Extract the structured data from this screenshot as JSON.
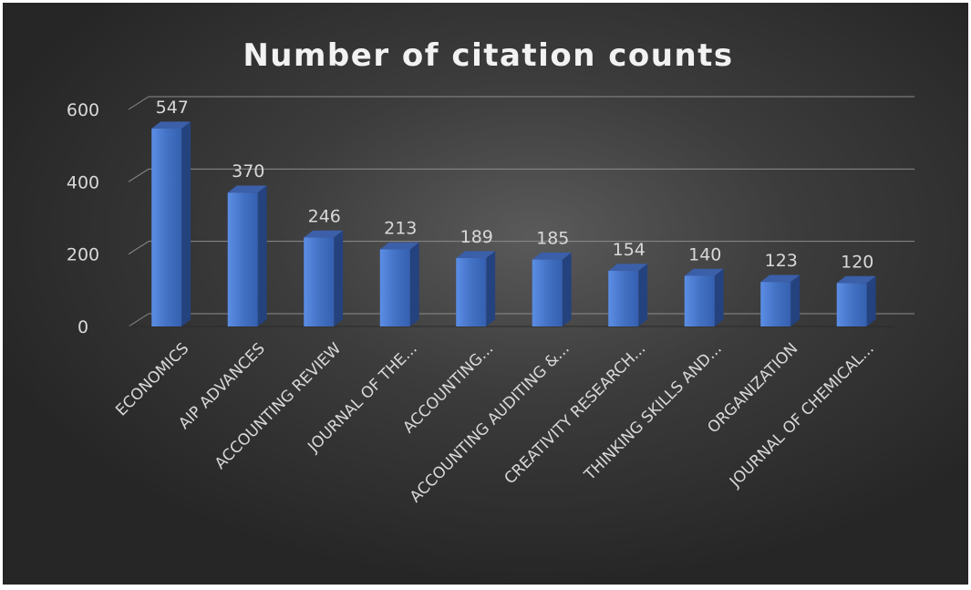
{
  "chart_data": {
    "type": "bar",
    "title": "Number of citation counts",
    "categories": [
      "ECONOMICS",
      "AIP ADVANCES",
      "ACCOUNTING REVIEW",
      "JOURNAL OF THE...",
      "ACCOUNTING...",
      "ACCOUNTING AUDITING &...",
      "CREATIVITY RESEARCH...",
      "THINKING SKILLS AND...",
      "ORGANIZATION",
      "JOURNAL OF CHEMICAL..."
    ],
    "values": [
      547,
      370,
      246,
      213,
      189,
      185,
      154,
      140,
      123,
      120
    ],
    "y_ticks": [
      "0",
      "200",
      "400",
      "600"
    ],
    "ylim": [
      0,
      600
    ],
    "grid": true,
    "data_labels": true,
    "colors": {
      "bar": "#4472c4",
      "background": "#3a3a3a",
      "text": "#d9d9d9",
      "grid": "#8c8c8c"
    }
  }
}
